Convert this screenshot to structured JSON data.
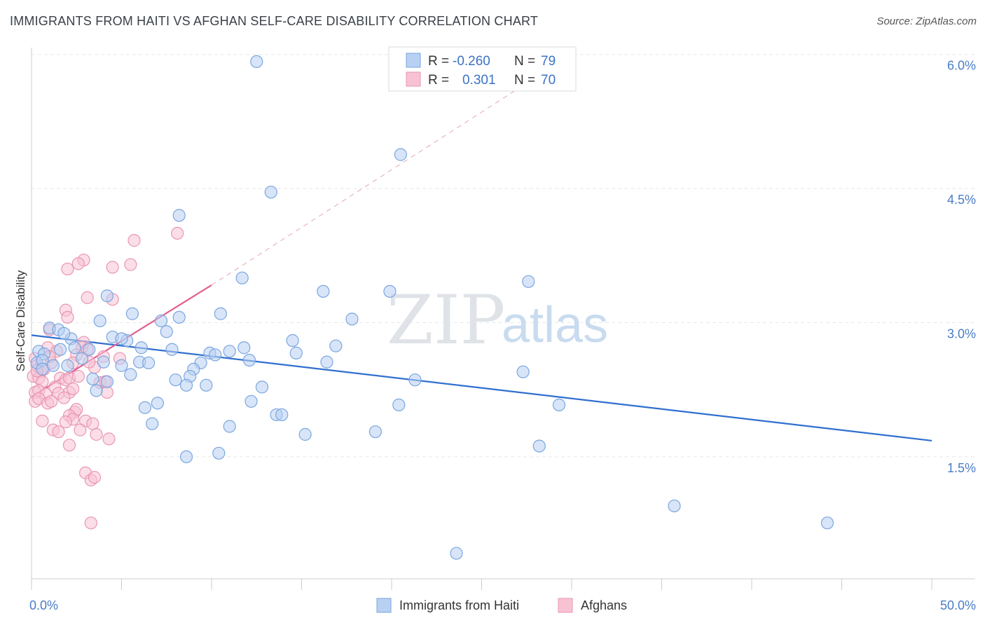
{
  "title": "IMMIGRANTS FROM HAITI VS AFGHAN SELF-CARE DISABILITY CORRELATION CHART",
  "source": "Source: ZipAtlas.com",
  "watermark": {
    "zip": "ZIP",
    "atlas": "atlas"
  },
  "legend": {
    "rows": [
      {
        "r_label": "R =",
        "r_value": "-0.260",
        "n_label": "N =",
        "n_value": "79"
      },
      {
        "r_label": "R =",
        "r_value": "0.301",
        "n_label": "N =",
        "n_value": "70"
      }
    ]
  },
  "bottom_legend": [
    "Immigrants from Haiti",
    "Afghans"
  ],
  "colors": {
    "haiti_fill": "#b8d0f2",
    "haiti_stroke": "#7aa6e0",
    "haiti_line": "#2f6fcf",
    "afghan_fill": "#f7c3d3",
    "afghan_stroke": "#e996b3",
    "afghan_line": "#e0608f",
    "tick_text": "#4a7cc7",
    "grid": "#e6e8ec"
  },
  "chart_data": {
    "type": "scatter",
    "title": "IMMIGRANTS FROM HAITI VS AFGHAN SELF-CARE DISABILITY CORRELATION CHART",
    "xlabel": "",
    "ylabel": "Self-Care Disability",
    "xlim": [
      0,
      50
    ],
    "ylim": [
      0,
      6.2
    ],
    "x_tick_labels": [
      "0.0%",
      "50.0%"
    ],
    "y_ticks": [
      1.5,
      3.0,
      4.5,
      6.0
    ],
    "y_tick_labels": [
      "1.5%",
      "3.0%",
      "4.5%",
      "6.0%"
    ],
    "grid": "horizontal dashed",
    "legend_placement": "top-center",
    "series": [
      {
        "name": "Immigrants from Haiti",
        "r": -0.26,
        "n": 79,
        "trend": {
          "x": [
            0,
            50
          ],
          "y": [
            2.86,
            1.68
          ],
          "style": "solid"
        },
        "points": [
          [
            12.5,
            5.92
          ],
          [
            20.5,
            4.88
          ],
          [
            13.3,
            4.46
          ],
          [
            8.2,
            4.2
          ],
          [
            11.7,
            3.5
          ],
          [
            16.2,
            3.35
          ],
          [
            19.9,
            3.35
          ],
          [
            27.6,
            3.46
          ],
          [
            4.2,
            3.3
          ],
          [
            5.6,
            3.1
          ],
          [
            3.8,
            3.02
          ],
          [
            7.2,
            3.02
          ],
          [
            8.2,
            3.06
          ],
          [
            10.5,
            3.1
          ],
          [
            17.8,
            3.04
          ],
          [
            1.0,
            2.94
          ],
          [
            1.5,
            2.92
          ],
          [
            2.2,
            2.82
          ],
          [
            4.5,
            2.84
          ],
          [
            5.3,
            2.8
          ],
          [
            5.0,
            2.82
          ],
          [
            7.5,
            2.9
          ],
          [
            0.4,
            2.68
          ],
          [
            0.7,
            2.65
          ],
          [
            1.6,
            2.7
          ],
          [
            2.4,
            2.72
          ],
          [
            3.2,
            2.7
          ],
          [
            6.1,
            2.72
          ],
          [
            7.8,
            2.7
          ],
          [
            9.9,
            2.66
          ],
          [
            10.2,
            2.64
          ],
          [
            11.0,
            2.68
          ],
          [
            11.8,
            2.72
          ],
          [
            14.5,
            2.8
          ],
          [
            14.7,
            2.66
          ],
          [
            16.9,
            2.74
          ],
          [
            0.3,
            2.55
          ],
          [
            0.6,
            2.58
          ],
          [
            1.2,
            2.52
          ],
          [
            2.0,
            2.52
          ],
          [
            2.8,
            2.6
          ],
          [
            4.0,
            2.56
          ],
          [
            5.0,
            2.52
          ],
          [
            6.0,
            2.56
          ],
          [
            6.5,
            2.55
          ],
          [
            9.4,
            2.55
          ],
          [
            9.0,
            2.48
          ],
          [
            12.1,
            2.58
          ],
          [
            16.4,
            2.56
          ],
          [
            5.5,
            2.42
          ],
          [
            8.0,
            2.36
          ],
          [
            8.8,
            2.4
          ],
          [
            8.6,
            2.3
          ],
          [
            9.7,
            2.3
          ],
          [
            12.8,
            2.28
          ],
          [
            21.3,
            2.36
          ],
          [
            27.3,
            2.45
          ],
          [
            3.4,
            2.37
          ],
          [
            4.2,
            2.34
          ],
          [
            3.6,
            2.24
          ],
          [
            7.0,
            2.1
          ],
          [
            12.2,
            2.12
          ],
          [
            20.4,
            2.08
          ],
          [
            29.3,
            2.08
          ],
          [
            6.3,
            2.05
          ],
          [
            13.6,
            1.97
          ],
          [
            13.9,
            1.97
          ],
          [
            6.7,
            1.87
          ],
          [
            11.0,
            1.84
          ],
          [
            15.2,
            1.75
          ],
          [
            19.1,
            1.78
          ],
          [
            28.2,
            1.62
          ],
          [
            8.6,
            1.5
          ],
          [
            10.4,
            1.54
          ],
          [
            35.7,
            0.95
          ],
          [
            44.2,
            0.76
          ],
          [
            23.6,
            0.42
          ],
          [
            0.6,
            2.48
          ],
          [
            1.8,
            2.88
          ]
        ]
      },
      {
        "name": "Afghans",
        "r": 0.301,
        "n": 70,
        "trend": {
          "x": [
            0,
            10
          ],
          "y": [
            2.17,
            3.42
          ],
          "style": "solid",
          "extension": {
            "x": [
              10,
              30
            ],
            "y": [
              3.42,
              6.0
            ],
            "style": "dashed"
          }
        },
        "points": [
          [
            8.1,
            4.0
          ],
          [
            5.7,
            3.92
          ],
          [
            2.9,
            3.7
          ],
          [
            2.6,
            3.66
          ],
          [
            2.0,
            3.6
          ],
          [
            4.5,
            3.62
          ],
          [
            5.5,
            3.65
          ],
          [
            3.1,
            3.28
          ],
          [
            4.5,
            3.26
          ],
          [
            1.9,
            3.14
          ],
          [
            2.0,
            3.06
          ],
          [
            1.0,
            2.92
          ],
          [
            0.9,
            2.72
          ],
          [
            1.4,
            2.68
          ],
          [
            2.8,
            2.72
          ],
          [
            2.9,
            2.78
          ],
          [
            3.1,
            2.7
          ],
          [
            2.5,
            2.64
          ],
          [
            4.0,
            2.62
          ],
          [
            4.9,
            2.6
          ],
          [
            0.2,
            2.6
          ],
          [
            0.3,
            2.52
          ],
          [
            0.5,
            2.45
          ],
          [
            0.7,
            2.48
          ],
          [
            1.1,
            2.55
          ],
          [
            2.3,
            2.55
          ],
          [
            3.5,
            2.5
          ],
          [
            3.2,
            2.56
          ],
          [
            0.1,
            2.4
          ],
          [
            0.4,
            2.38
          ],
          [
            0.6,
            2.34
          ],
          [
            1.6,
            2.38
          ],
          [
            1.9,
            2.36
          ],
          [
            2.1,
            2.38
          ],
          [
            2.6,
            2.4
          ],
          [
            3.8,
            2.33
          ],
          [
            4.1,
            2.34
          ],
          [
            0.2,
            2.22
          ],
          [
            0.4,
            2.24
          ],
          [
            0.8,
            2.2
          ],
          [
            1.3,
            2.28
          ],
          [
            1.5,
            2.21
          ],
          [
            2.1,
            2.22
          ],
          [
            2.3,
            2.26
          ],
          [
            4.2,
            2.22
          ],
          [
            0.2,
            2.12
          ],
          [
            0.4,
            2.15
          ],
          [
            0.9,
            2.1
          ],
          [
            1.1,
            2.12
          ],
          [
            1.8,
            2.16
          ],
          [
            2.4,
            2.0
          ],
          [
            2.5,
            2.03
          ],
          [
            2.1,
            1.96
          ],
          [
            2.3,
            1.92
          ],
          [
            1.9,
            1.89
          ],
          [
            3.0,
            1.9
          ],
          [
            3.4,
            1.87
          ],
          [
            0.6,
            1.9
          ],
          [
            1.2,
            1.8
          ],
          [
            1.5,
            1.78
          ],
          [
            2.7,
            1.8
          ],
          [
            3.6,
            1.75
          ],
          [
            4.3,
            1.7
          ],
          [
            2.1,
            1.63
          ],
          [
            3.0,
            1.32
          ],
          [
            3.3,
            1.24
          ],
          [
            3.5,
            1.27
          ],
          [
            3.3,
            0.76
          ],
          [
            0.3,
            2.46
          ],
          [
            1.0,
            2.62
          ]
        ]
      }
    ]
  }
}
